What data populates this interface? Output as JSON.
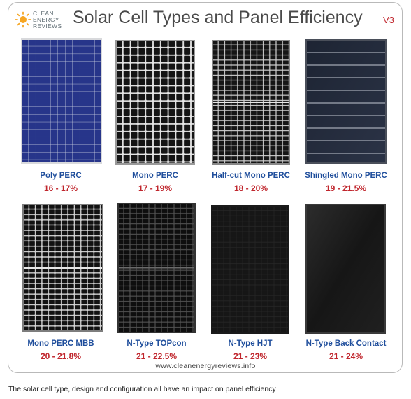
{
  "logo": {
    "line1": "CLEAN",
    "line2": "ENERGY",
    "line3": "REVIEWS"
  },
  "title": "Solar Cell Types and Panel Efficiency",
  "version": "V3",
  "panels": [
    {
      "name": "Poly PERC",
      "efficiency": "16 - 17%"
    },
    {
      "name": "Mono PERC",
      "efficiency": "17 - 19%"
    },
    {
      "name": "Half-cut Mono PERC",
      "efficiency": "18 - 20%"
    },
    {
      "name": "Shingled Mono PERC",
      "efficiency": "19 - 21.5%"
    },
    {
      "name": "Mono PERC MBB",
      "efficiency": "20 - 21.8%"
    },
    {
      "name": "N-Type TOPcon",
      "efficiency": "21 - 22.5%"
    },
    {
      "name": "N-Type HJT",
      "efficiency": "21 - 23%"
    },
    {
      "name": "N-Type Back Contact",
      "efficiency": "21 - 24%"
    }
  ],
  "website": "www.cleanenergyreviews.info",
  "caption": "The solar cell type, design and configuration all have an impact on panel efficiency"
}
